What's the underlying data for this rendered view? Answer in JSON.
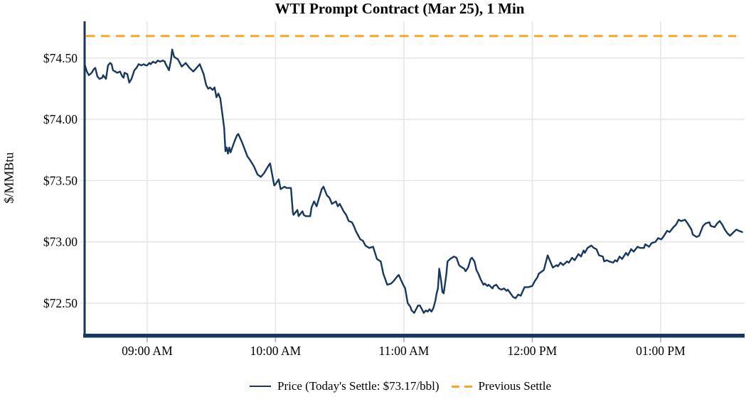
{
  "chart": {
    "title": "WTI Prompt Contract (Mar 25), 1 Min",
    "ylabel": "$/MMBtu",
    "legend": {
      "price_label": "Price (Today's Settle: $73.17/bbl)",
      "previous_settle_label": "Previous Settle"
    },
    "colors": {
      "price_line": "#17375E",
      "previous_settle": "#FFA426",
      "grid": "#E6E6E6",
      "axis": "#17375E",
      "tick": "#B0B0B0",
      "text": "#000000"
    }
  },
  "chart_data": {
    "type": "line",
    "title": "WTI Prompt Contract (Mar 25), 1 Min",
    "xlabel": "",
    "ylabel": "$/MMBtu",
    "grid": true,
    "legend_position": "bottom",
    "xlim": [
      8.513,
      13.654
    ],
    "ylim": [
      72.25,
      74.8
    ],
    "x_ticks": [
      {
        "value": 9,
        "label": "09:00 AM"
      },
      {
        "value": 10,
        "label": "10:00 AM"
      },
      {
        "value": 11,
        "label": "11:00 AM"
      },
      {
        "value": 12,
        "label": "12:00 PM"
      },
      {
        "value": 13,
        "label": "01:00 PM"
      }
    ],
    "y_ticks": [
      {
        "value": 72.5,
        "label": "$72.50"
      },
      {
        "value": 73.0,
        "label": "$73.00"
      },
      {
        "value": 73.5,
        "label": "$73.50"
      },
      {
        "value": 74.0,
        "label": "$74.00"
      },
      {
        "value": 74.5,
        "label": "$74.50"
      }
    ],
    "todays_settle": 73.17,
    "previous_settle": 74.68,
    "series": [
      {
        "name": "Price",
        "x_unit": "decimal_hours",
        "points": [
          [
            8.513,
            74.45
          ],
          [
            8.53,
            74.39
          ],
          [
            8.546,
            74.36
          ],
          [
            8.568,
            74.38
          ],
          [
            8.585,
            74.41
          ],
          [
            8.596,
            74.42
          ],
          [
            8.612,
            74.35
          ],
          [
            8.629,
            74.33
          ],
          [
            8.651,
            74.34
          ],
          [
            8.657,
            74.36
          ],
          [
            8.679,
            74.33
          ],
          [
            8.695,
            74.44
          ],
          [
            8.712,
            74.46
          ],
          [
            8.723,
            74.45
          ],
          [
            8.734,
            74.4
          ],
          [
            8.751,
            74.39
          ],
          [
            8.767,
            74.38
          ],
          [
            8.789,
            74.39
          ],
          [
            8.806,
            74.35
          ],
          [
            8.817,
            74.34
          ],
          [
            8.823,
            74.38
          ],
          [
            8.845,
            74.37
          ],
          [
            8.861,
            74.3
          ],
          [
            8.878,
            74.33
          ],
          [
            8.9,
            74.4
          ],
          [
            8.917,
            74.42
          ],
          [
            8.934,
            74.45
          ],
          [
            8.956,
            74.44
          ],
          [
            8.972,
            74.45
          ],
          [
            8.989,
            74.44
          ],
          [
            9.0,
            74.44
          ],
          [
            9.017,
            74.46
          ],
          [
            9.028,
            74.45
          ],
          [
            9.044,
            74.47
          ],
          [
            9.066,
            74.46
          ],
          [
            9.083,
            74.48
          ],
          [
            9.1,
            74.47
          ],
          [
            9.122,
            74.48
          ],
          [
            9.139,
            74.47
          ],
          [
            9.14,
            74.46
          ],
          [
            9.155,
            74.43
          ],
          [
            9.17,
            74.4
          ],
          [
            9.185,
            74.48
          ],
          [
            9.195,
            74.57
          ],
          [
            9.21,
            74.51
          ],
          [
            9.24,
            74.49
          ],
          [
            9.27,
            74.43
          ],
          [
            9.3,
            74.46
          ],
          [
            9.33,
            74.42
          ],
          [
            9.36,
            74.39
          ],
          [
            9.385,
            74.42
          ],
          [
            9.41,
            74.45
          ],
          [
            9.44,
            74.37
          ],
          [
            9.46,
            74.28
          ],
          [
            9.475,
            74.25
          ],
          [
            9.49,
            74.26
          ],
          [
            9.51,
            74.24
          ],
          [
            9.525,
            74.26
          ],
          [
            9.54,
            74.18
          ],
          [
            9.555,
            74.21
          ],
          [
            9.57,
            74.17
          ],
          [
            9.58,
            74.09
          ],
          [
            9.6,
            73.93
          ],
          [
            9.61,
            73.74
          ],
          [
            9.62,
            73.77
          ],
          [
            9.63,
            73.72
          ],
          [
            9.64,
            73.77
          ],
          [
            9.65,
            73.73
          ],
          [
            9.66,
            73.76
          ],
          [
            9.68,
            73.82
          ],
          [
            9.7,
            73.87
          ],
          [
            9.71,
            73.88
          ],
          [
            9.74,
            73.81
          ],
          [
            9.78,
            73.7
          ],
          [
            9.8,
            73.67
          ],
          [
            9.83,
            73.62
          ],
          [
            9.86,
            73.55
          ],
          [
            9.886,
            73.53
          ],
          [
            9.91,
            73.56
          ],
          [
            9.95,
            73.63
          ],
          [
            9.958,
            73.64
          ],
          [
            9.99,
            73.46
          ],
          [
            10.0,
            73.47
          ],
          [
            10.025,
            73.51
          ],
          [
            10.04,
            73.43
          ],
          [
            10.07,
            73.45
          ],
          [
            10.085,
            73.44
          ],
          [
            10.12,
            73.44
          ],
          [
            10.135,
            73.24
          ],
          [
            10.14,
            73.22
          ],
          [
            10.17,
            73.26
          ],
          [
            10.18,
            73.21
          ],
          [
            10.21,
            73.25
          ],
          [
            10.22,
            73.22
          ],
          [
            10.235,
            73.21
          ],
          [
            10.27,
            73.21
          ],
          [
            10.28,
            73.28
          ],
          [
            10.3,
            73.33
          ],
          [
            10.32,
            73.29
          ],
          [
            10.36,
            73.43
          ],
          [
            10.374,
            73.45
          ],
          [
            10.4,
            73.38
          ],
          [
            10.42,
            73.36
          ],
          [
            10.44,
            73.31
          ],
          [
            10.47,
            73.33
          ],
          [
            10.485,
            73.29
          ],
          [
            10.5,
            73.31
          ],
          [
            10.53,
            73.25
          ],
          [
            10.55,
            73.22
          ],
          [
            10.57,
            73.17
          ],
          [
            10.595,
            73.16
          ],
          [
            10.61,
            73.13
          ],
          [
            10.625,
            73.09
          ],
          [
            10.64,
            73.06
          ],
          [
            10.66,
            73.02
          ],
          [
            10.68,
            73.01
          ],
          [
            10.7,
            72.97
          ],
          [
            10.73,
            72.95
          ],
          [
            10.76,
            72.96
          ],
          [
            10.79,
            72.86
          ],
          [
            10.82,
            72.84
          ],
          [
            10.84,
            72.74
          ],
          [
            10.87,
            72.65
          ],
          [
            10.9,
            72.66
          ],
          [
            10.92,
            72.68
          ],
          [
            10.95,
            72.72
          ],
          [
            10.96,
            72.73
          ],
          [
            10.99,
            72.66
          ],
          [
            11.01,
            72.62
          ],
          [
            11.03,
            72.5
          ],
          [
            11.05,
            72.47
          ],
          [
            11.06,
            72.44
          ],
          [
            11.08,
            72.42
          ],
          [
            11.095,
            72.45
          ],
          [
            11.11,
            72.48
          ],
          [
            11.125,
            72.48
          ],
          [
            11.14,
            72.45
          ],
          [
            11.155,
            72.42
          ],
          [
            11.17,
            72.44
          ],
          [
            11.185,
            72.43
          ],
          [
            11.2,
            72.45
          ],
          [
            11.215,
            72.43
          ],
          [
            11.23,
            72.46
          ],
          [
            11.245,
            72.52
          ],
          [
            11.255,
            72.58
          ],
          [
            11.265,
            72.62
          ],
          [
            11.275,
            72.78
          ],
          [
            11.29,
            72.68
          ],
          [
            11.3,
            72.59
          ],
          [
            11.31,
            72.58
          ],
          [
            11.33,
            72.73
          ],
          [
            11.34,
            72.84
          ],
          [
            11.36,
            72.86
          ],
          [
            11.39,
            72.88
          ],
          [
            11.41,
            72.87
          ],
          [
            11.43,
            72.81
          ],
          [
            11.44,
            72.8
          ],
          [
            11.47,
            72.78
          ],
          [
            11.48,
            72.76
          ],
          [
            11.5,
            72.79
          ],
          [
            11.52,
            72.86
          ],
          [
            11.53,
            72.87
          ],
          [
            11.55,
            72.84
          ],
          [
            11.565,
            72.77
          ],
          [
            11.58,
            72.74
          ],
          [
            11.6,
            72.69
          ],
          [
            11.62,
            72.65
          ],
          [
            11.63,
            72.66
          ],
          [
            11.65,
            72.64
          ],
          [
            11.66,
            72.65
          ],
          [
            11.69,
            72.62
          ],
          [
            11.7,
            72.64
          ],
          [
            11.72,
            72.65
          ],
          [
            11.74,
            72.62
          ],
          [
            11.76,
            72.61
          ],
          [
            11.78,
            72.62
          ],
          [
            11.8,
            72.6
          ],
          [
            11.81,
            72.61
          ],
          [
            11.83,
            72.58
          ],
          [
            11.85,
            72.55
          ],
          [
            11.87,
            72.54
          ],
          [
            11.89,
            72.57
          ],
          [
            11.91,
            72.56
          ],
          [
            11.94,
            72.63
          ],
          [
            11.97,
            72.63
          ],
          [
            12.0,
            72.64
          ],
          [
            12.02,
            72.68
          ],
          [
            12.04,
            72.71
          ],
          [
            12.05,
            72.74
          ],
          [
            12.09,
            72.77
          ],
          [
            12.11,
            72.85
          ],
          [
            12.12,
            72.89
          ],
          [
            12.14,
            72.84
          ],
          [
            12.16,
            72.79
          ],
          [
            12.19,
            72.81
          ],
          [
            12.2,
            72.8
          ],
          [
            12.22,
            72.83
          ],
          [
            12.24,
            72.81
          ],
          [
            12.27,
            72.84
          ],
          [
            12.285,
            72.83
          ],
          [
            12.31,
            72.87
          ],
          [
            12.33,
            72.85
          ],
          [
            12.36,
            72.9
          ],
          [
            12.38,
            72.88
          ],
          [
            12.4,
            72.93
          ],
          [
            12.41,
            72.91
          ],
          [
            12.43,
            72.95
          ],
          [
            12.46,
            72.97
          ],
          [
            12.48,
            72.95
          ],
          [
            12.5,
            72.94
          ],
          [
            12.52,
            72.89
          ],
          [
            12.55,
            72.88
          ],
          [
            12.56,
            72.84
          ],
          [
            12.58,
            72.85
          ],
          [
            12.6,
            72.84
          ],
          [
            12.63,
            72.83
          ],
          [
            12.645,
            72.85
          ],
          [
            12.66,
            72.84
          ],
          [
            12.68,
            72.88
          ],
          [
            12.7,
            72.86
          ],
          [
            12.73,
            72.91
          ],
          [
            12.745,
            72.89
          ],
          [
            12.77,
            72.94
          ],
          [
            12.79,
            72.92
          ],
          [
            12.82,
            72.96
          ],
          [
            12.84,
            72.95
          ],
          [
            12.87,
            72.95
          ],
          [
            12.88,
            72.98
          ],
          [
            12.91,
            72.96
          ],
          [
            12.93,
            72.99
          ],
          [
            12.96,
            73.0
          ],
          [
            12.98,
            73.03
          ],
          [
            13.005,
            73.02
          ],
          [
            13.02,
            73.04
          ],
          [
            13.05,
            73.09
          ],
          [
            13.07,
            73.08
          ],
          [
            13.1,
            73.12
          ],
          [
            13.12,
            73.14
          ],
          [
            13.14,
            73.18
          ],
          [
            13.16,
            73.17
          ],
          [
            13.19,
            73.18
          ],
          [
            13.21,
            73.15
          ],
          [
            13.24,
            73.1
          ],
          [
            13.25,
            73.06
          ],
          [
            13.28,
            73.04
          ],
          [
            13.3,
            73.05
          ],
          [
            13.33,
            73.13
          ],
          [
            13.35,
            73.15
          ],
          [
            13.38,
            73.16
          ],
          [
            13.39,
            73.13
          ],
          [
            13.42,
            73.12
          ],
          [
            13.44,
            73.15
          ],
          [
            13.46,
            73.17
          ],
          [
            13.48,
            73.14
          ],
          [
            13.5,
            73.1
          ],
          [
            13.52,
            73.07
          ],
          [
            13.54,
            73.05
          ],
          [
            13.57,
            73.08
          ],
          [
            13.59,
            73.1
          ],
          [
            13.61,
            73.09
          ],
          [
            13.635,
            73.08
          ]
        ]
      },
      {
        "name": "Previous Settle",
        "style": "dashed-horizontal",
        "value": 74.68
      }
    ]
  }
}
